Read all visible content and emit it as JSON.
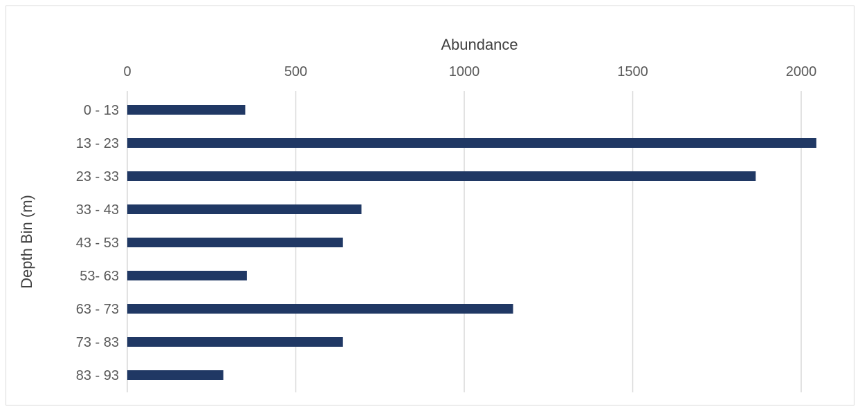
{
  "chart_data": {
    "type": "bar",
    "orientation": "horizontal",
    "categories": [
      "0 - 13",
      "13 - 23",
      "23 - 33",
      "33 - 43",
      "43 - 53",
      "53- 63",
      "63 - 73",
      "73 - 83",
      "83 - 93"
    ],
    "values": [
      350,
      2045,
      1865,
      695,
      640,
      355,
      1145,
      640,
      285
    ],
    "xlabel": "Abundance",
    "ylabel": "Depth Bin (m)",
    "xlim": [
      0,
      2000
    ],
    "xticks": [
      "0",
      "500",
      "1000",
      "1500",
      "2000"
    ],
    "x_axis_position": "top",
    "grid": "vertical",
    "bar_color": "#203864",
    "grid_color": "#d9d9d9"
  }
}
